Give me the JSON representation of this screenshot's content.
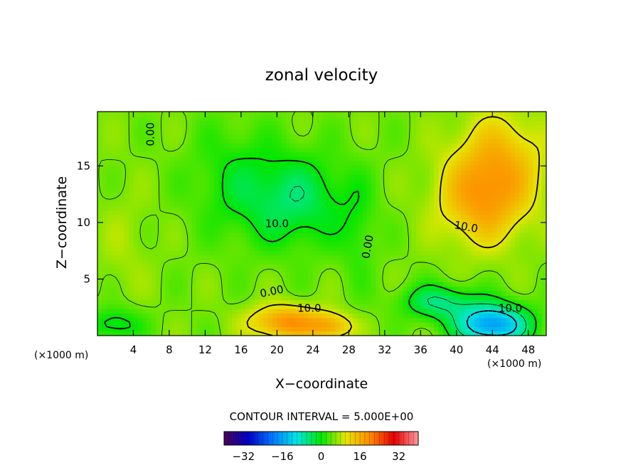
{
  "chart_data": {
    "type": "heatmap",
    "title": "zonal velocity",
    "xlabel": "X−coordinate",
    "ylabel": "Z−coordinate",
    "x_unit_label": "(×1000 m)",
    "z_unit_label": "(×1000 m)",
    "xlim": [
      0,
      50
    ],
    "ylim": [
      0,
      19.8
    ],
    "x_ticks": [
      4,
      8,
      12,
      16,
      20,
      24,
      28,
      32,
      36,
      40,
      44,
      48
    ],
    "y_ticks": [
      5,
      10,
      15
    ],
    "contour_interval_text": "CONTOUR INTERVAL = 5.000E+00",
    "contour_labels": [
      {
        "text": "0.00",
        "x": 6.3,
        "z": 17.8,
        "rotate": -90
      },
      {
        "text": "10.0",
        "x": 20.0,
        "z": 9.6,
        "rotate": 0
      },
      {
        "text": "0.00",
        "x": 30.5,
        "z": 7.8,
        "rotate": -80
      },
      {
        "text": "10.0",
        "x": 41.0,
        "z": 9.3,
        "rotate": 10
      },
      {
        "text": "0.00",
        "x": 19.5,
        "z": 3.6,
        "rotate": -12
      },
      {
        "text": "10.0",
        "x": 23.6,
        "z": 2.1,
        "rotate": 0
      },
      {
        "text": "10.0",
        "x": 46.0,
        "z": 2.1,
        "rotate": 0
      }
    ],
    "colorbar": {
      "ticks": [
        -32,
        -16,
        0,
        16,
        32
      ],
      "range": [
        -40,
        40
      ],
      "colors": [
        "#4b0055",
        "#0000c8",
        "#0078ff",
        "#00e6e6",
        "#00e600",
        "#e6e600",
        "#ff8c00",
        "#e60000",
        "#ff9999"
      ]
    },
    "field_samples": {
      "background": 5,
      "blobs": [
        {
          "x": 22,
          "z": 12,
          "sx": 6,
          "sz": 4,
          "v": -9
        },
        {
          "x": 15,
          "z": 14,
          "sx": 5,
          "sz": 5,
          "v": -4
        },
        {
          "x": 3,
          "z": 8,
          "sx": 3,
          "sz": 5,
          "v": 2
        },
        {
          "x": 43,
          "z": 12,
          "sx": 5,
          "sz": 4,
          "v": 12
        },
        {
          "x": 45,
          "z": 16,
          "sx": 5,
          "sz": 4,
          "v": 8
        },
        {
          "x": 21,
          "z": 1.2,
          "sx": 4,
          "sz": 1.5,
          "v": 14
        },
        {
          "x": 26,
          "z": 0.8,
          "sx": 2.5,
          "sz": 1.2,
          "v": 10
        },
        {
          "x": 44,
          "z": 1.0,
          "sx": 4,
          "sz": 1.8,
          "v": -22
        },
        {
          "x": 38,
          "z": 3.0,
          "sx": 4,
          "sz": 1.5,
          "v": -10
        },
        {
          "x": 2,
          "z": 1.0,
          "sx": 3,
          "sz": 1.5,
          "v": -7
        },
        {
          "x": 29,
          "z": 9,
          "sx": 2,
          "sz": 5,
          "v": -3
        }
      ]
    }
  }
}
